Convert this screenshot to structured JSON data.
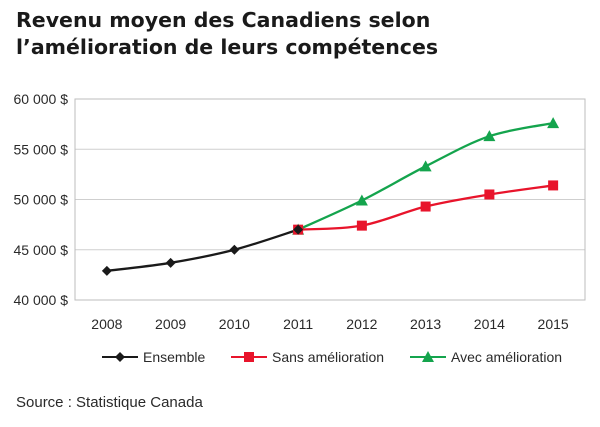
{
  "chart_data": {
    "type": "line",
    "title": "Revenu moyen des Canadiens selon l’amélioration de leurs compétences",
    "xlabel": "",
    "ylabel": "",
    "x": [
      "2008",
      "2009",
      "2010",
      "2011",
      "2012",
      "2013",
      "2014",
      "2015"
    ],
    "ylim": [
      40000,
      60000
    ],
    "yticks": [
      40000,
      45000,
      50000,
      55000,
      60000
    ],
    "ytick_labels": [
      "40 000 $",
      "45 000 $",
      "50 000 $",
      "55 000 $",
      "60 000 $"
    ],
    "grid": true,
    "legend_position": "bottom",
    "series": [
      {
        "name": "Ensemble",
        "color": "#1a1a1a",
        "marker": "diamond",
        "x": [
          "2008",
          "2009",
          "2010",
          "2011"
        ],
        "values": [
          42900,
          43700,
          45000,
          47000
        ]
      },
      {
        "name": "Sans amélioration",
        "color": "#e8142b",
        "marker": "square",
        "x": [
          "2011",
          "2012",
          "2013",
          "2014",
          "2015"
        ],
        "values": [
          47000,
          47400,
          49300,
          50500,
          51400
        ]
      },
      {
        "name": "Avec amélioration",
        "color": "#14a44d",
        "marker": "triangle",
        "x": [
          "2011",
          "2012",
          "2013",
          "2014",
          "2015"
        ],
        "values": [
          47000,
          49900,
          53300,
          56300,
          57600
        ]
      }
    ]
  },
  "source": "Source : Statistique Canada"
}
